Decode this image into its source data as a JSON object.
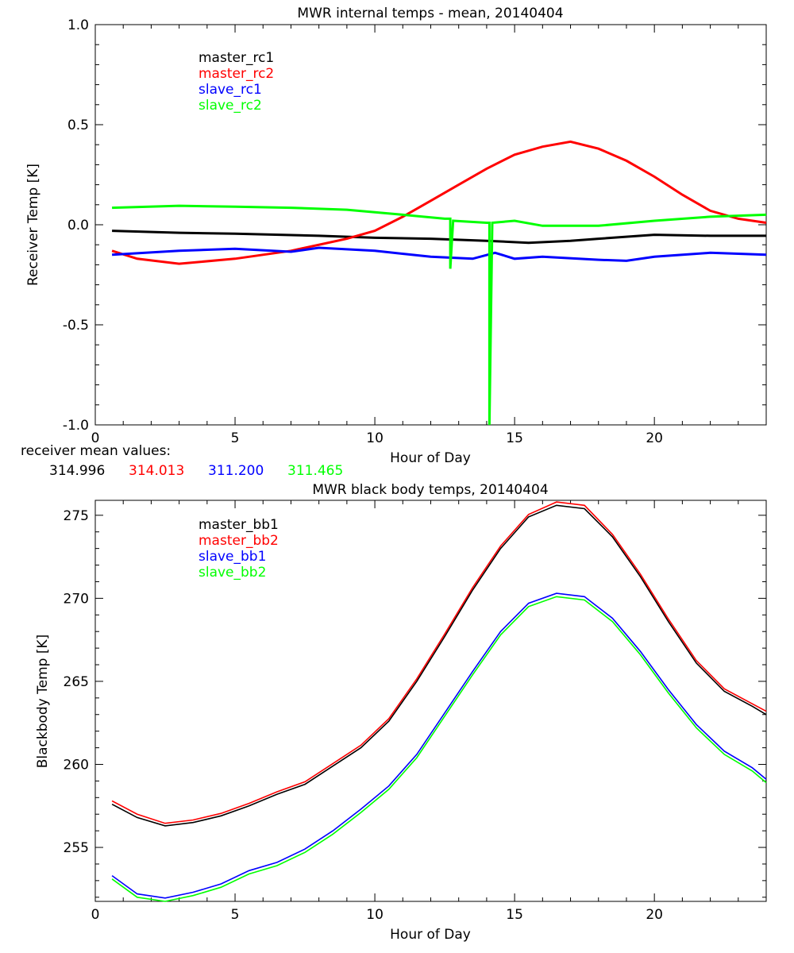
{
  "chart_data": [
    {
      "type": "line",
      "title": "MWR internal temps - mean, 20140404",
      "xlabel": "Hour of Day",
      "ylabel": "Receiver Temp [K]",
      "xlim": [
        0,
        24
      ],
      "ylim": [
        -1.0,
        1.0
      ],
      "xticks": [
        "0",
        "5",
        "10",
        "15",
        "20"
      ],
      "yticks": [
        "-1.0",
        "-0.5",
        "0.0",
        "0.5",
        "1.0"
      ],
      "grid": false,
      "legend_placement": "top-left",
      "series": [
        {
          "name": "master_rc1",
          "color": "#000000",
          "x": [
            0.6,
            3,
            5,
            8,
            10,
            12,
            14,
            15.5,
            17,
            18,
            20,
            22,
            24
          ],
          "y": [
            -0.03,
            -0.04,
            -0.045,
            -0.055,
            -0.065,
            -0.07,
            -0.08,
            -0.09,
            -0.08,
            -0.07,
            -0.05,
            -0.055,
            -0.055
          ]
        },
        {
          "name": "master_rc2",
          "color": "#ff0000",
          "x": [
            0.6,
            1.5,
            3,
            5,
            7,
            9,
            10,
            11,
            12,
            13,
            14,
            15,
            16,
            17,
            18,
            19,
            20,
            21,
            22,
            23,
            24
          ],
          "y": [
            -0.13,
            -0.17,
            -0.195,
            -0.17,
            -0.13,
            -0.07,
            -0.03,
            0.04,
            0.12,
            0.2,
            0.28,
            0.35,
            0.39,
            0.415,
            0.38,
            0.32,
            0.24,
            0.15,
            0.07,
            0.03,
            0.01
          ]
        },
        {
          "name": "slave_rc1",
          "color": "#0000ff",
          "x": [
            0.6,
            3,
            5,
            7,
            8,
            10,
            12,
            13.5,
            14.3,
            15,
            16,
            18,
            19,
            20,
            22,
            24
          ],
          "y": [
            -0.15,
            -0.13,
            -0.12,
            -0.135,
            -0.115,
            -0.13,
            -0.16,
            -0.17,
            -0.14,
            -0.17,
            -0.16,
            -0.175,
            -0.18,
            -0.16,
            -0.14,
            -0.15
          ]
        },
        {
          "name": "slave_rc2",
          "color": "#00ff00",
          "x": [
            0.6,
            3,
            5,
            7,
            9,
            11,
            12.5,
            12.7,
            12.7,
            12.8,
            14,
            14.1,
            14.1,
            14.2,
            15,
            16,
            18,
            20,
            22,
            24
          ],
          "y": [
            0.085,
            0.095,
            0.09,
            0.085,
            0.075,
            0.05,
            0.03,
            0.03,
            -0.22,
            0.02,
            0.01,
            0.01,
            -1.0,
            0.01,
            0.02,
            -0.005,
            -0.005,
            0.02,
            0.04,
            0.05
          ]
        }
      ],
      "annotations": {
        "label": "receiver mean values:",
        "values": [
          {
            "text": "314.996",
            "color": "#000000"
          },
          {
            "text": "314.013",
            "color": "#ff0000"
          },
          {
            "text": "311.200",
            "color": "#0000ff"
          },
          {
            "text": "311.465",
            "color": "#00ff00"
          }
        ]
      }
    },
    {
      "type": "line",
      "title": "MWR black body temps, 20140404",
      "xlabel": "Hour of Day",
      "ylabel": "Blackbody Temp [K]",
      "xlim": [
        0,
        24
      ],
      "ylim": [
        251.75,
        275.9
      ],
      "xticks": [
        "0",
        "5",
        "10",
        "15",
        "20"
      ],
      "yticks": [
        "255",
        "260",
        "265",
        "270",
        "275"
      ],
      "grid": false,
      "legend_placement": "top-left",
      "series": [
        {
          "name": "master_bb1",
          "color": "#000000",
          "x": [
            0.6,
            1.5,
            2.5,
            3.5,
            4.5,
            5.5,
            6.5,
            7.5,
            8.5,
            9.5,
            10.5,
            11.5,
            12.5,
            13.5,
            14.5,
            15.5,
            16.5,
            17.5,
            18.5,
            19.5,
            20.5,
            21.5,
            22.5,
            23.5,
            24
          ],
          "y": [
            257.6,
            256.8,
            256.3,
            256.5,
            256.9,
            257.5,
            258.2,
            258.8,
            259.9,
            261.0,
            262.6,
            265.0,
            267.7,
            270.5,
            273.0,
            274.9,
            275.6,
            275.4,
            273.7,
            271.3,
            268.6,
            266.1,
            264.4,
            263.5,
            263.0
          ]
        },
        {
          "name": "master_bb2",
          "color": "#ff0000",
          "x": [
            0.6,
            1.5,
            2.5,
            3.5,
            4.5,
            5.5,
            6.5,
            7.5,
            8.5,
            9.5,
            10.5,
            11.5,
            12.5,
            13.5,
            14.5,
            15.5,
            16.5,
            17.5,
            18.5,
            19.5,
            20.5,
            21.5,
            22.5,
            23.5,
            24
          ],
          "y": [
            257.8,
            257.0,
            256.45,
            256.65,
            257.05,
            257.65,
            258.35,
            258.95,
            260.05,
            261.15,
            262.75,
            265.15,
            267.85,
            270.65,
            273.15,
            275.05,
            275.8,
            275.6,
            273.85,
            271.45,
            268.75,
            266.25,
            264.55,
            263.65,
            263.2
          ]
        },
        {
          "name": "slave_bb1",
          "color": "#0000ff",
          "x": [
            0.6,
            1.5,
            2.5,
            3.5,
            4.5,
            5.5,
            6.5,
            7.5,
            8.5,
            9.5,
            10.5,
            11.5,
            12.5,
            13.5,
            14.5,
            15.5,
            16.5,
            17.5,
            18.5,
            19.5,
            20.5,
            21.5,
            22.5,
            23.5,
            24
          ],
          "y": [
            253.3,
            252.2,
            251.95,
            252.3,
            252.8,
            253.6,
            254.1,
            254.9,
            256.0,
            257.3,
            258.7,
            260.6,
            263.1,
            265.6,
            268.0,
            269.7,
            270.3,
            270.1,
            268.8,
            266.8,
            264.5,
            262.4,
            260.8,
            259.8,
            259.1
          ]
        },
        {
          "name": "slave_bb2",
          "color": "#00ff00",
          "x": [
            0.6,
            1.5,
            2.5,
            3.5,
            4.5,
            5.5,
            6.5,
            7.5,
            8.5,
            9.5,
            10.5,
            11.5,
            12.5,
            13.5,
            14.5,
            15.5,
            16.5,
            17.5,
            18.5,
            19.5,
            20.5,
            21.5,
            22.5,
            23.5,
            24
          ],
          "y": [
            253.1,
            252.0,
            251.75,
            252.1,
            252.6,
            253.4,
            253.9,
            254.7,
            255.8,
            257.1,
            258.5,
            260.4,
            262.9,
            265.4,
            267.8,
            269.5,
            270.1,
            269.9,
            268.6,
            266.6,
            264.3,
            262.2,
            260.6,
            259.6,
            258.9
          ]
        }
      ]
    }
  ]
}
